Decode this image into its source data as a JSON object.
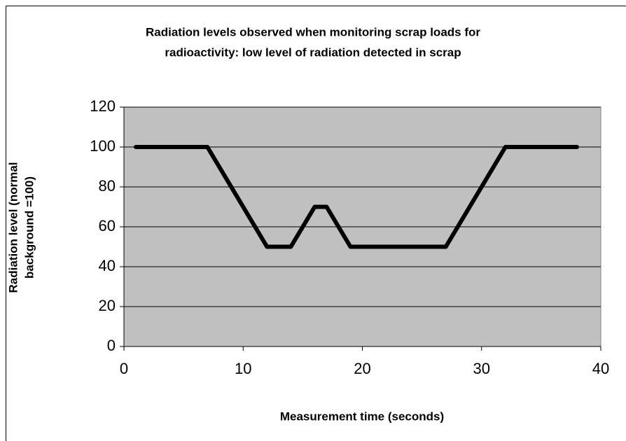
{
  "chart_data": {
    "type": "line",
    "title": [
      "Radiation levels observed when monitoring scrap loads for",
      "radioactivity:  low level of radiation detected in scrap"
    ],
    "x_label": "Measurement time (seconds)",
    "y_label": [
      "Radiation level (normal",
      "background =100)"
    ],
    "x": [
      1,
      2,
      3,
      4,
      5,
      6,
      7,
      8,
      9,
      10,
      11,
      12,
      13,
      14,
      15,
      16,
      17,
      18,
      19,
      20,
      21,
      22,
      23,
      24,
      25,
      26,
      27,
      28,
      29,
      30,
      31,
      32,
      33,
      34,
      35,
      36,
      37,
      38
    ],
    "series": [
      {
        "color": "#000000",
        "values": [
          100,
          100,
          100,
          100,
          100,
          100,
          100,
          90,
          80,
          70,
          60,
          50,
          50,
          50,
          60,
          70,
          70,
          60,
          50,
          50,
          50,
          50,
          50,
          50,
          50,
          50,
          50,
          60,
          70,
          80,
          90,
          100,
          100,
          100,
          100,
          100,
          100,
          100
        ]
      }
    ],
    "xlim": [
      0,
      40
    ],
    "xticks": [
      0,
      10,
      20,
      30,
      40
    ],
    "ylim": [
      0,
      120
    ],
    "yticks": [
      0,
      20,
      40,
      60,
      80,
      100,
      120
    ],
    "grid": true
  }
}
